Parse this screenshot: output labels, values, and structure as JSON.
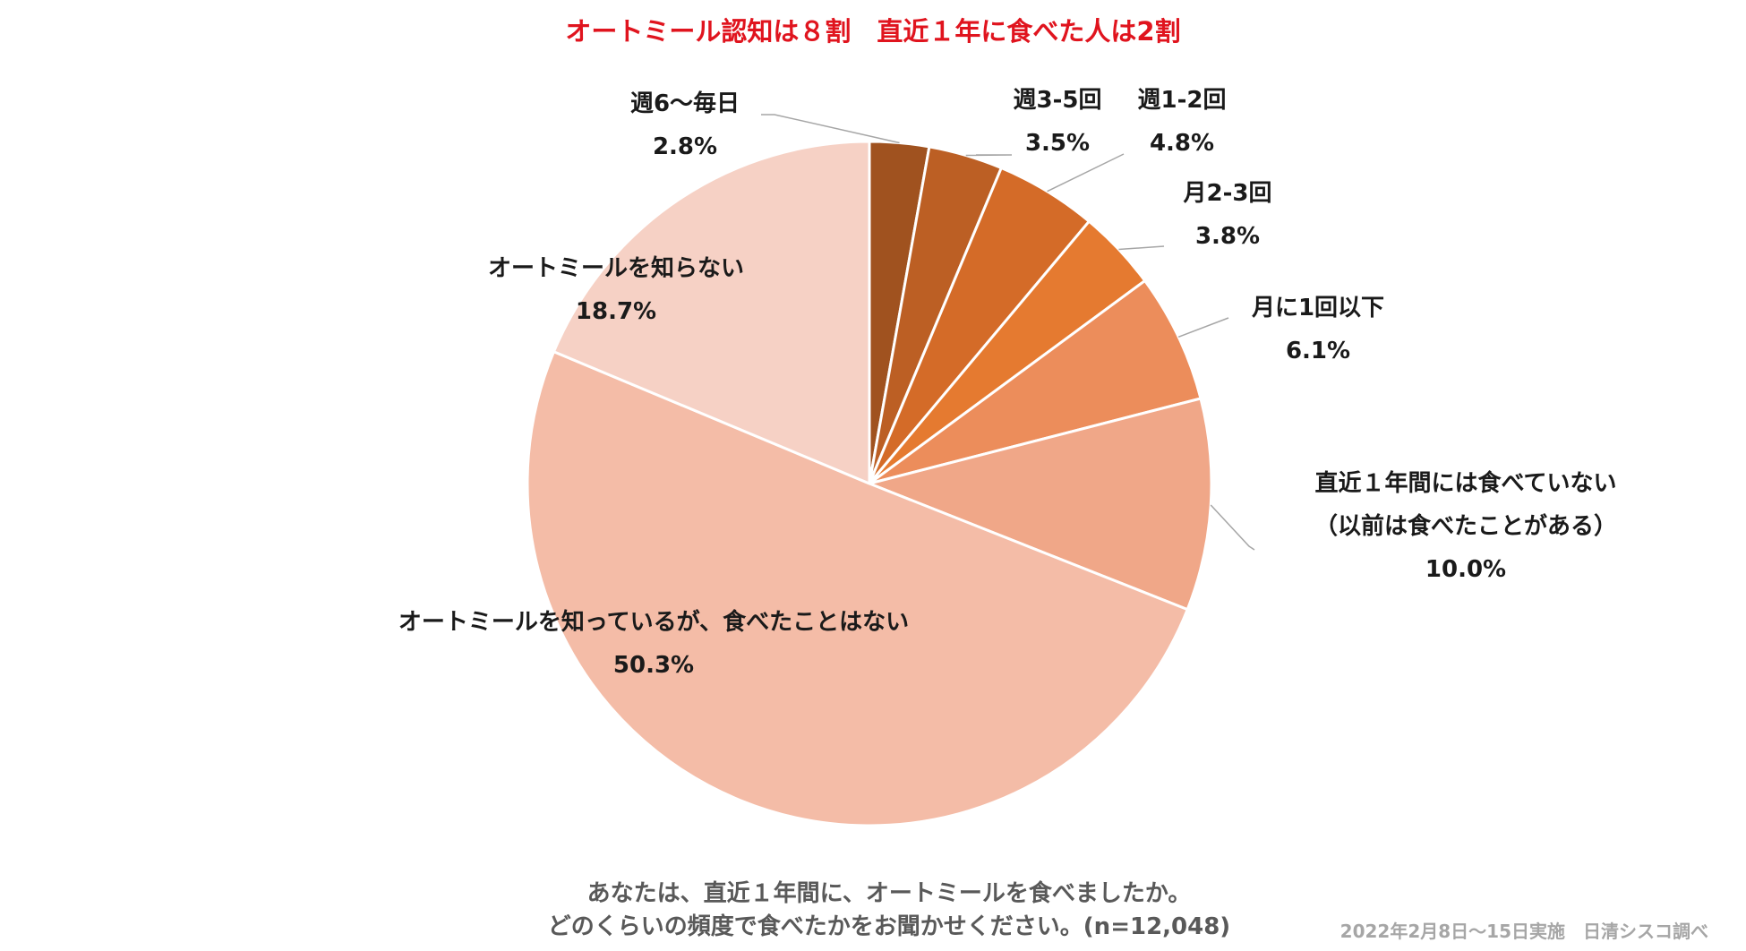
{
  "chart_data": {
    "type": "pie",
    "title": "オートミール認知は８割　直近１年に食べた人は2割",
    "start_angle_deg": 0,
    "direction": "clockwise",
    "slices": [
      {
        "label": "週6～毎日",
        "value": 2.8,
        "value_text": "2.8%",
        "color": "#a0521f"
      },
      {
        "label": "週3-5回",
        "value": 3.5,
        "value_text": "3.5%",
        "color": "#bc5f24"
      },
      {
        "label": "週1-2回",
        "value": 4.8,
        "value_text": "4.8%",
        "color": "#d46b28"
      },
      {
        "label": "月2-3回",
        "value": 3.8,
        "value_text": "3.8%",
        "color": "#e57a30"
      },
      {
        "label": "月に1回以下",
        "value": 6.1,
        "value_text": "6.1%",
        "color": "#ec8d5b"
      },
      {
        "label": "直近１年間には食べていない",
        "label2": "（以前は食べたことがある）",
        "value": 10.0,
        "value_text": "10.0%",
        "color": "#f0a788"
      },
      {
        "label": "オートミールを知っているが、食べたことはない",
        "value": 50.3,
        "value_text": "50.3%",
        "color": "#f4bca7"
      },
      {
        "label": "オートミールを知らない",
        "value": 18.7,
        "value_text": "18.7%",
        "color": "#f6d1c5"
      }
    ]
  },
  "footer": {
    "question_line1": "あなたは、直近１年間に、オートミールを食べましたか。",
    "question_line2": "どのくらいの頻度で食べたかをお聞かせください。(n=12,048)",
    "source": "2022年2月8日～15日実施　日清シスコ調べ"
  }
}
